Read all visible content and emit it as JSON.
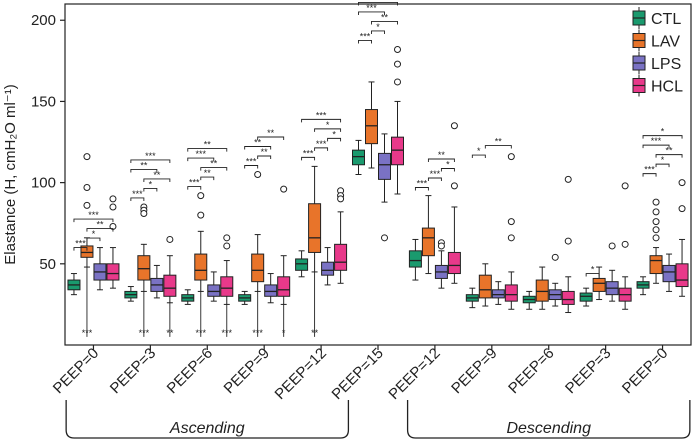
{
  "chart_data": {
    "type": "boxplot",
    "ylabel": "Elastance (H, cmH₂O ml⁻¹)",
    "ylim": [
      0,
      210
    ],
    "yticks": [
      50,
      100,
      150,
      200
    ],
    "categories": [
      "PEEP=0",
      "PEEP=3",
      "PEEP=6",
      "PEEP=9",
      "PEEP=12",
      "PEEP=15",
      "PEEP=12",
      "PEEP=9",
      "PEEP=6",
      "PEEP=3",
      "PEEP=0"
    ],
    "phases": [
      {
        "label": "Ascending",
        "from": 0,
        "to": 4
      },
      {
        "label": "Descending",
        "from": 6,
        "to": 10
      }
    ],
    "legend": {
      "position": "top-right",
      "entries": [
        {
          "name": "CTL",
          "color": "#1a9a6e"
        },
        {
          "name": "LAV",
          "color": "#e8742a"
        },
        {
          "name": "LPS",
          "color": "#7a72c4"
        },
        {
          "name": "HCL",
          "color": "#e8398a"
        }
      ]
    },
    "series": [
      {
        "name": "CTL",
        "color": "#1a9a6e",
        "boxes": [
          {
            "q1": 34,
            "med": 37,
            "q3": 40,
            "wlo": 31,
            "whi": 44,
            "out": []
          },
          {
            "q1": 29,
            "med": 31,
            "q3": 33,
            "wlo": 27,
            "whi": 36,
            "out": []
          },
          {
            "q1": 27,
            "med": 29,
            "q3": 31,
            "wlo": 25,
            "whi": 34,
            "out": []
          },
          {
            "q1": 27,
            "med": 29,
            "q3": 31,
            "wlo": 25,
            "whi": 33,
            "out": []
          },
          {
            "q1": 46,
            "med": 50,
            "q3": 53,
            "wlo": 42,
            "whi": 58,
            "out": []
          },
          {
            "q1": 111,
            "med": 116,
            "q3": 120,
            "wlo": 105,
            "whi": 126,
            "out": []
          },
          {
            "q1": 48,
            "med": 52,
            "q3": 58,
            "wlo": 40,
            "whi": 65,
            "out": []
          },
          {
            "q1": 27,
            "med": 29,
            "q3": 31,
            "wlo": 23,
            "whi": 35,
            "out": []
          },
          {
            "q1": 26,
            "med": 28,
            "q3": 30,
            "wlo": 22,
            "whi": 33,
            "out": []
          },
          {
            "q1": 27,
            "med": 30,
            "q3": 32,
            "wlo": 24,
            "whi": 35,
            "out": []
          },
          {
            "q1": 35,
            "med": 37,
            "q3": 39,
            "wlo": 31,
            "whi": 42,
            "out": []
          }
        ]
      },
      {
        "name": "LAV",
        "color": "#e8742a",
        "boxes": [
          {
            "q1": 54,
            "med": 57,
            "q3": 61,
            "wlo": 48,
            "whi": 66,
            "out": [
              116,
              97,
              86
            ]
          },
          {
            "q1": 40,
            "med": 47,
            "q3": 55,
            "wlo": 33,
            "whi": 62,
            "out": [
              85,
              83,
              81
            ]
          },
          {
            "q1": 40,
            "med": 46,
            "q3": 56,
            "wlo": 33,
            "whi": 70,
            "out": [
              92,
              80
            ]
          },
          {
            "q1": 39,
            "med": 46,
            "q3": 56,
            "wlo": 33,
            "whi": 68,
            "out": [
              105
            ]
          },
          {
            "q1": 57,
            "med": 66,
            "q3": 87,
            "wlo": 45,
            "whi": 110,
            "out": []
          },
          {
            "q1": 124,
            "med": 135,
            "q3": 145,
            "wlo": 109,
            "whi": 162,
            "out": []
          },
          {
            "q1": 55,
            "med": 66,
            "q3": 72,
            "wlo": 44,
            "whi": 92,
            "out": []
          },
          {
            "q1": 29,
            "med": 34,
            "q3": 43,
            "wlo": 24,
            "whi": 50,
            "out": []
          },
          {
            "q1": 27,
            "med": 33,
            "q3": 40,
            "wlo": 22,
            "whi": 48,
            "out": []
          },
          {
            "q1": 33,
            "med": 38,
            "q3": 41,
            "wlo": 28,
            "whi": 48,
            "out": []
          },
          {
            "q1": 44,
            "med": 52,
            "q3": 55,
            "wlo": 38,
            "whi": 60,
            "out": [
              88,
              82,
              76,
              71,
              66
            ]
          }
        ]
      },
      {
        "name": "LPS",
        "color": "#7a72c4",
        "boxes": [
          {
            "q1": 40,
            "med": 45,
            "q3": 50,
            "wlo": 34,
            "whi": 60,
            "out": []
          },
          {
            "q1": 33,
            "med": 37,
            "q3": 41,
            "wlo": 29,
            "whi": 49,
            "out": []
          },
          {
            "q1": 30,
            "med": 33,
            "q3": 37,
            "wlo": 27,
            "whi": 45,
            "out": []
          },
          {
            "q1": 30,
            "med": 33,
            "q3": 37,
            "wlo": 26,
            "whi": 44,
            "out": []
          },
          {
            "q1": 43,
            "med": 46,
            "q3": 51,
            "wlo": 37,
            "whi": 60,
            "out": []
          },
          {
            "q1": 102,
            "med": 111,
            "q3": 118,
            "wlo": 88,
            "whi": 130,
            "out": [
              66
            ]
          },
          {
            "q1": 41,
            "med": 45,
            "q3": 49,
            "wlo": 35,
            "whi": 58,
            "out": [
              63,
              61
            ]
          },
          {
            "q1": 29,
            "med": 31,
            "q3": 34,
            "wlo": 25,
            "whi": 39,
            "out": []
          },
          {
            "q1": 28,
            "med": 31,
            "q3": 34,
            "wlo": 24,
            "whi": 38,
            "out": [
              54
            ]
          },
          {
            "q1": 31,
            "med": 35,
            "q3": 39,
            "wlo": 27,
            "whi": 46,
            "out": [
              61
            ]
          },
          {
            "q1": 39,
            "med": 45,
            "q3": 49,
            "wlo": 33,
            "whi": 56,
            "out": []
          }
        ]
      },
      {
        "name": "HCL",
        "color": "#e8398a",
        "boxes": [
          {
            "q1": 40,
            "med": 44,
            "q3": 50,
            "wlo": 35,
            "whi": 60,
            "out": [
              90,
              85,
              73
            ]
          },
          {
            "q1": 30,
            "med": 35,
            "q3": 43,
            "wlo": 26,
            "whi": 55,
            "out": [
              65
            ]
          },
          {
            "q1": 30,
            "med": 35,
            "q3": 42,
            "wlo": 25,
            "whi": 52,
            "out": [
              66,
              61
            ]
          },
          {
            "q1": 30,
            "med": 34,
            "q3": 42,
            "wlo": 25,
            "whi": 55,
            "out": [
              96
            ]
          },
          {
            "q1": 46,
            "med": 51,
            "q3": 62,
            "wlo": 38,
            "whi": 82,
            "out": [
              95,
              92,
              90
            ]
          },
          {
            "q1": 111,
            "med": 120,
            "q3": 128,
            "wlo": 93,
            "whi": 150,
            "out": [
              182,
              173,
              162
            ]
          },
          {
            "q1": 44,
            "med": 49,
            "q3": 57,
            "wlo": 38,
            "whi": 85,
            "out": [
              135,
              98
            ]
          },
          {
            "q1": 27,
            "med": 31,
            "q3": 37,
            "wlo": 22,
            "whi": 45,
            "out": [
              116,
              76,
              66
            ]
          },
          {
            "q1": 25,
            "med": 28,
            "q3": 33,
            "wlo": 20,
            "whi": 42,
            "out": [
              102,
              64
            ]
          },
          {
            "q1": 27,
            "med": 31,
            "q3": 35,
            "wlo": 22,
            "whi": 42,
            "out": [
              98,
              62
            ]
          },
          {
            "q1": 36,
            "med": 40,
            "q3": 50,
            "wlo": 30,
            "whi": 65,
            "out": [
              100,
              84
            ]
          }
        ]
      }
    ],
    "comparisons": [
      {
        "g": 0,
        "a": 0,
        "b": 1,
        "label": "***"
      },
      {
        "g": 0,
        "a": 1,
        "b": 2,
        "label": "*"
      },
      {
        "g": 0,
        "a": 1,
        "b": 3,
        "label": "**"
      },
      {
        "g": 0,
        "a": 0,
        "b": 3,
        "label": "***"
      },
      {
        "g": 1,
        "a": 0,
        "b": 1,
        "label": "***"
      },
      {
        "g": 1,
        "a": 1,
        "b": 2,
        "label": "*"
      },
      {
        "g": 1,
        "a": 1,
        "b": 3,
        "label": "**"
      },
      {
        "g": 1,
        "a": 0,
        "b": 2,
        "label": "**"
      },
      {
        "g": 1,
        "a": 0,
        "b": 3,
        "label": "***"
      },
      {
        "g": 2,
        "a": 0,
        "b": 1,
        "label": "***"
      },
      {
        "g": 2,
        "a": 1,
        "b": 2,
        "label": "**"
      },
      {
        "g": 2,
        "a": 1,
        "b": 3,
        "label": "**"
      },
      {
        "g": 2,
        "a": 0,
        "b": 2,
        "label": "***"
      },
      {
        "g": 2,
        "a": 0,
        "b": 3,
        "label": "**"
      },
      {
        "g": 3,
        "a": 0,
        "b": 1,
        "label": "***"
      },
      {
        "g": 3,
        "a": 1,
        "b": 2,
        "label": "**"
      },
      {
        "g": 3,
        "a": 0,
        "b": 2,
        "label": "**"
      },
      {
        "g": 3,
        "a": 1,
        "b": 3,
        "label": "**"
      },
      {
        "g": 4,
        "a": 0,
        "b": 1,
        "label": "***"
      },
      {
        "g": 4,
        "a": 1,
        "b": 2,
        "label": "***"
      },
      {
        "g": 4,
        "a": 1,
        "b": 3,
        "label": "*"
      },
      {
        "g": 4,
        "a": 0,
        "b": 3,
        "label": "***"
      },
      {
        "g": 4,
        "a": 2,
        "b": 3,
        "label": "*"
      },
      {
        "g": 5,
        "a": 0,
        "b": 1,
        "label": "***"
      },
      {
        "g": 5,
        "a": 1,
        "b": 2,
        "label": "*"
      },
      {
        "g": 5,
        "a": 1,
        "b": 3,
        "label": "**"
      },
      {
        "g": 5,
        "a": 0,
        "b": 2,
        "label": "***"
      },
      {
        "g": 5,
        "a": 0,
        "b": 3,
        "label": "***"
      },
      {
        "g": 6,
        "a": 0,
        "b": 1,
        "label": "***"
      },
      {
        "g": 6,
        "a": 1,
        "b": 2,
        "label": "***"
      },
      {
        "g": 6,
        "a": 1,
        "b": 3,
        "label": "**"
      },
      {
        "g": 6,
        "a": 2,
        "b": 3,
        "label": "*"
      },
      {
        "g": 7,
        "a": 0,
        "b": 1,
        "label": "*"
      },
      {
        "g": 7,
        "a": 1,
        "b": 3,
        "label": "**"
      },
      {
        "g": 9,
        "a": 0,
        "b": 1,
        "label": "*"
      },
      {
        "g": 10,
        "a": 0,
        "b": 1,
        "label": "***"
      },
      {
        "g": 10,
        "a": 1,
        "b": 2,
        "label": "*"
      },
      {
        "g": 10,
        "a": 1,
        "b": 3,
        "label": "**"
      },
      {
        "g": 10,
        "a": 0,
        "b": 2,
        "label": "***"
      },
      {
        "g": 10,
        "a": 0,
        "b": 3,
        "label": "*"
      }
    ],
    "bottom_marks": [
      {
        "g": 0,
        "s": 1,
        "label": "***"
      },
      {
        "g": 1,
        "s": 1,
        "label": "***"
      },
      {
        "g": 1,
        "s": 3,
        "label": "**"
      },
      {
        "g": 2,
        "s": 1,
        "label": "***"
      },
      {
        "g": 2,
        "s": 3,
        "label": "***"
      },
      {
        "g": 3,
        "s": 1,
        "label": "***"
      },
      {
        "g": 3,
        "s": 3,
        "label": "*"
      },
      {
        "g": 4,
        "s": 1,
        "label": "**"
      }
    ]
  }
}
